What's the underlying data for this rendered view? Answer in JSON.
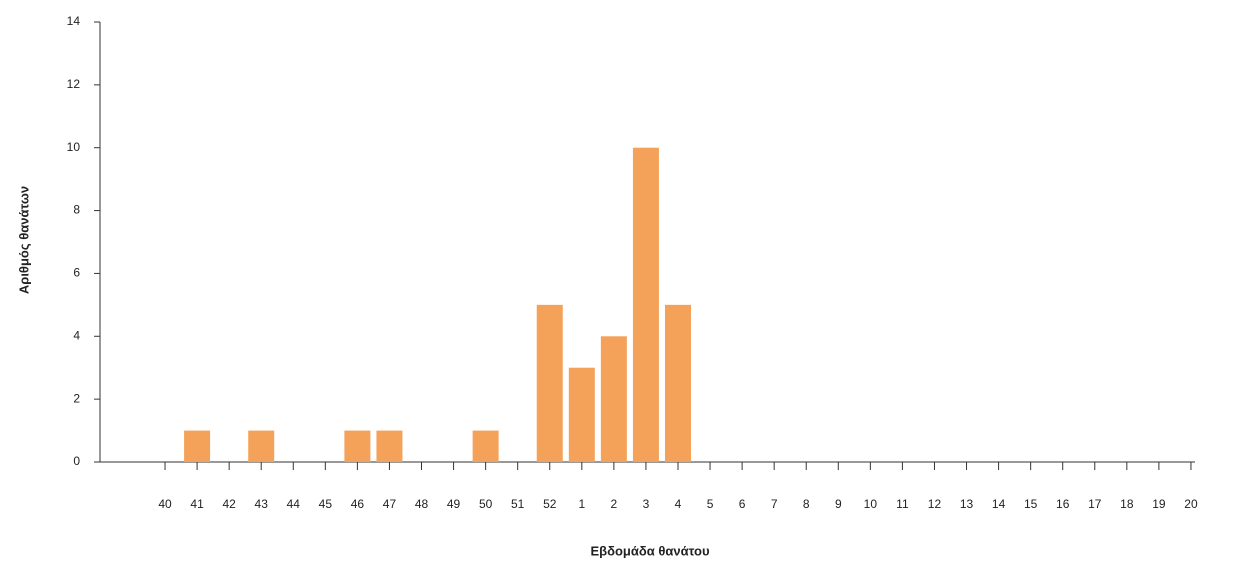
{
  "chart_data": {
    "type": "bar",
    "x_label": "Εβδομάδα θανάτου",
    "y_label": "Αριθμός θανάτων",
    "categories": [
      "40",
      "41",
      "42",
      "43",
      "44",
      "45",
      "46",
      "47",
      "48",
      "49",
      "50",
      "51",
      "52",
      "1",
      "2",
      "3",
      "4",
      "5",
      "6",
      "7",
      "8",
      "9",
      "10",
      "11",
      "12",
      "13",
      "14",
      "15",
      "16",
      "17",
      "18",
      "19",
      "20"
    ],
    "values": [
      0,
      1,
      0,
      1,
      0,
      0,
      1,
      1,
      0,
      0,
      1,
      0,
      5,
      3,
      4,
      10,
      5,
      0,
      0,
      0,
      0,
      0,
      0,
      0,
      0,
      0,
      0,
      0,
      0,
      0,
      0,
      0,
      0
    ],
    "color": "#f4a259",
    "ylim": [
      0,
      14
    ],
    "yticks": [
      0,
      2,
      4,
      6,
      8,
      10,
      12,
      14
    ],
    "grid": false
  }
}
